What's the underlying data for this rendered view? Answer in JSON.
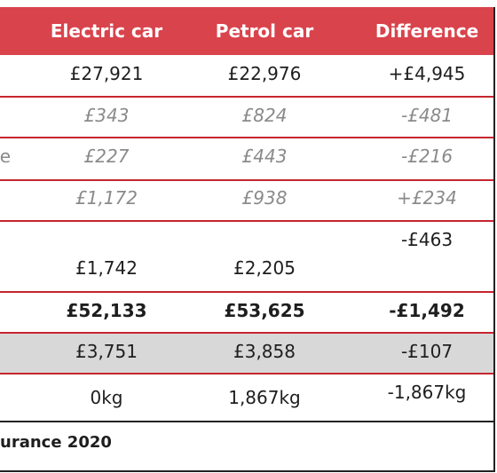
{
  "table": {
    "headers": [
      "Electric car",
      "Petrol car",
      "Difference"
    ],
    "rows": [
      {
        "label": "",
        "electric": "£27,921",
        "petrol": "£22,976",
        "difference": "+£4,945"
      },
      {
        "label": "",
        "electric": "£343",
        "petrol": "£824",
        "difference": "-£481"
      },
      {
        "label": "e",
        "electric": "£227",
        "petrol": "£443",
        "difference": "-£216"
      },
      {
        "label": "",
        "electric": "£1,172",
        "petrol": "£938",
        "difference": "+£234"
      },
      {
        "label": "",
        "electric": "£1,742",
        "petrol": "£2,205",
        "difference": "-£463"
      },
      {
        "label": "",
        "electric": "£52,133",
        "petrol": "£53,625",
        "difference": "-£1,492"
      },
      {
        "label": "",
        "electric": "£3,751",
        "petrol": "£3,858",
        "difference": "-£107"
      },
      {
        "label": "",
        "electric": "0kg",
        "petrol": "1,867kg",
        "difference": "-1,867kg"
      }
    ]
  },
  "source": "urance 2020",
  "colors": {
    "header_bg": "#d9434c",
    "row_divider": "#c6262e",
    "shaded_row": "#d8d8d8"
  }
}
